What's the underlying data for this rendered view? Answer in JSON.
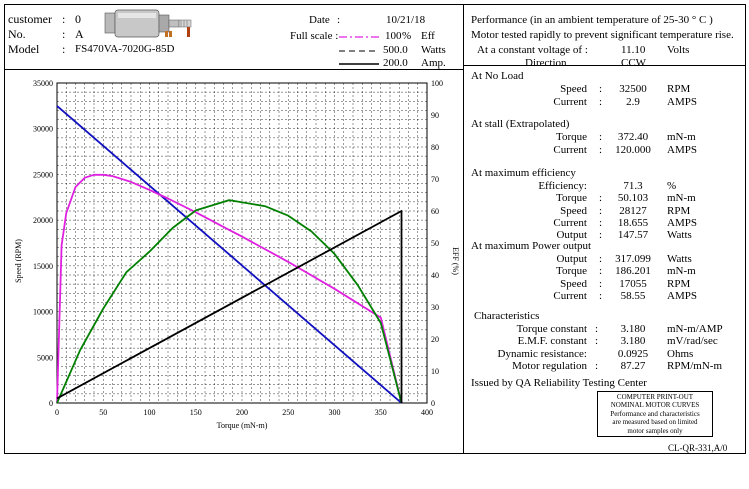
{
  "header": {
    "customer_label": "customer",
    "customer_colon": ":",
    "customer_value": "0",
    "no_label": "No.",
    "no_colon": ":",
    "no_value": "A",
    "model_label": "Model",
    "model_colon": ":",
    "model_value": "FS470VA-7020G-85D",
    "date_label": "Date",
    "date_colon": ":",
    "date_value": "10/21/18",
    "fullscale_label": "Full scale :",
    "eff_value": "100",
    "eff_unit": "%",
    "eff_label": "Eff",
    "watts_value": "500.0",
    "watts_label": "Watts",
    "amp_value": "200.0",
    "amp_label": "Amp."
  },
  "legend_colors": {
    "eff": "#e020e0",
    "watts": "#000000",
    "amp": "#000000"
  },
  "performance": {
    "title": "Performance (in an ambient temperature of 25-30 ° C )",
    "note": "Motor tested rapidly to prevent significant temperature rise.",
    "voltage_label": "At a constant voltage of :",
    "voltage_value": "11.10",
    "voltage_unit": "Volts",
    "direction_label": "Direction",
    "direction_value": "CCW",
    "no_load_title": "At No Load",
    "no_load": [
      {
        "label": "Speed",
        "colon": ":",
        "value": "32500",
        "unit": "RPM"
      },
      {
        "label": "Current",
        "colon": ":",
        "value": "2.9",
        "unit": "AMPS"
      }
    ],
    "stall_title": "At stall (Extrapolated)",
    "stall": [
      {
        "label": "Torque",
        "colon": ":",
        "value": "372.40",
        "unit": "mN-m"
      },
      {
        "label": "Current",
        "colon": ":",
        "value": "120.000",
        "unit": "AMPS"
      }
    ],
    "max_eff_title": "At maximum efficiency",
    "max_eff": [
      {
        "label": "Efficiency:",
        "colon": "",
        "value": "71.3",
        "unit": "%"
      },
      {
        "label": "Torque",
        "colon": ":",
        "value": "50.103",
        "unit": "mN-m"
      },
      {
        "label": "Speed",
        "colon": ":",
        "value": "28127",
        "unit": "RPM"
      },
      {
        "label": "Current",
        "colon": ":",
        "value": "18.655",
        "unit": "AMPS"
      },
      {
        "label": "Output",
        "colon": ":",
        "value": "147.57",
        "unit": "Watts"
      }
    ],
    "max_power_title": "At maximum Power output",
    "max_power": [
      {
        "label": "Output",
        "colon": ":",
        "value": "317.099",
        "unit": "Watts"
      },
      {
        "label": "Torque",
        "colon": ":",
        "value": "186.201",
        "unit": "mN-m"
      },
      {
        "label": "Speed",
        "colon": ":",
        "value": "17055",
        "unit": "RPM"
      },
      {
        "label": "Current",
        "colon": ":",
        "value": "58.55",
        "unit": "AMPS"
      }
    ],
    "char_title": "Characteristics",
    "characteristics": [
      {
        "label": "Torque constant",
        "colon": ":",
        "value": "3.180",
        "unit": "mN-m/AMP"
      },
      {
        "label": "E.M.F. constant",
        "colon": ":",
        "value": "3.180",
        "unit": "mV/rad/sec"
      },
      {
        "label": "Dynamic resistance:",
        "colon": "",
        "value": "0.0925",
        "unit": "Ohms"
      },
      {
        "label": "Motor regulation",
        "colon": ":",
        "value": "87.27",
        "unit": "RPM/mN-m"
      }
    ],
    "issued_by": "Issued by QA Reliability Testing  Center",
    "box_lines": [
      "COMPUTER PRINT-OUT",
      "NOMINAL MOTOR CURVES",
      "Performance and characteristics",
      "are  measured  based  on  limited",
      "motor samples only"
    ]
  },
  "footer_code": "CL-QR-331,A/0",
  "chart_data": {
    "type": "line",
    "xlabel": "Torque (mN-m)",
    "ylabel": "Speed (RPM)",
    "y2label": "EFF (%)",
    "xlim": [
      0,
      400
    ],
    "ylim": [
      0,
      35000
    ],
    "y2lim": [
      0,
      100
    ],
    "x_ticks": [
      0,
      50,
      100,
      150,
      200,
      250,
      300,
      350,
      400
    ],
    "y_ticks": [
      0,
      5000,
      10000,
      15000,
      20000,
      25000,
      30000,
      35000
    ],
    "y2_ticks": [
      0,
      10,
      20,
      30,
      40,
      50,
      60,
      70,
      80,
      90,
      100
    ],
    "grid": true,
    "series": [
      {
        "key": "speed",
        "color": "#1010c0",
        "x": [
          0,
          372.4
        ],
        "y": [
          32500,
          0
        ]
      },
      {
        "key": "efficiency",
        "color": "#e020e0",
        "x": [
          0,
          5,
          10,
          20,
          30,
          40,
          50.1,
          60,
          80,
          100,
          120,
          150,
          186.2,
          200,
          250,
          300,
          350,
          372.4
        ],
        "y": [
          0,
          49.3,
          59.4,
          67.5,
          70.4,
          71.3,
          71.3,
          70.9,
          69.1,
          66.6,
          63.9,
          59.6,
          54.1,
          52.0,
          44.1,
          35.7,
          26.7,
          0
        ]
      },
      {
        "key": "output_power",
        "color": "#008000",
        "x": [
          0,
          25,
          50,
          75,
          100,
          125,
          150,
          186.2,
          225,
          250,
          275,
          300,
          325,
          350,
          372.4
        ],
        "y": [
          0,
          82.5,
          147.6,
          204.3,
          236.6,
          273.5,
          300.9,
          317.1,
          307.5,
          292.6,
          268.1,
          232.9,
          184.6,
          125.0,
          0
        ]
      },
      {
        "key": "current",
        "color": "#000000",
        "x": [
          0,
          372.4,
          372.4
        ],
        "y": [
          2.9,
          120.0,
          0
        ]
      }
    ],
    "full_scale": {
      "eff": 100,
      "watts": 500,
      "amp": 200
    }
  }
}
